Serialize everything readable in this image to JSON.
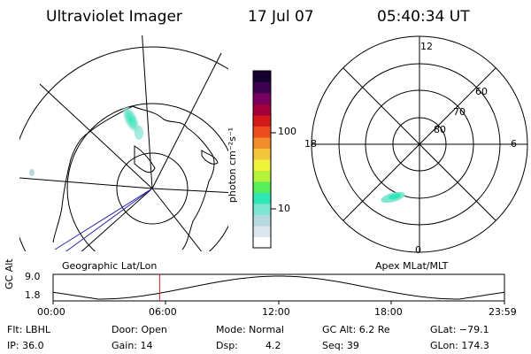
{
  "header": {
    "instrument": "Ultraviolet Imager",
    "date": "17 Jul 07",
    "time": "05:40:34 UT"
  },
  "colorbar": {
    "unit_label": "photon cm⁻²s⁻¹",
    "tick_100": "100",
    "tick_10": "10",
    "colors": [
      "#ffffff",
      "#dde6ee",
      "#b8d8e0",
      "#7fe6d2",
      "#2fe8b6",
      "#57f05a",
      "#b6f23a",
      "#f0f23c",
      "#f2c53c",
      "#f08d2a",
      "#ee4b1e",
      "#d21a1a",
      "#a3003a",
      "#7a0060",
      "#3e0050",
      "#160030"
    ]
  },
  "polar_plot": {
    "mlt_labels": {
      "top": "12",
      "left": "18",
      "right": "6",
      "bottom": "0"
    },
    "lat_labels": [
      "60",
      "70",
      "80"
    ]
  },
  "plot_labels": {
    "geo": "Geographic Lat/Lon",
    "apex": "Apex MLat/MLT"
  },
  "timeline": {
    "ylabel": "GC Alt",
    "ymax": "9.0",
    "ymin": "1.8",
    "xticks": [
      "00:00",
      "06:00",
      "12:00",
      "18:00",
      "23:59"
    ],
    "current_time_fraction": 0.236,
    "marker_color": "#d21a1a"
  },
  "info": {
    "flt": "Flt: LBHL",
    "door": "Door: Open",
    "mode": "Mode: Normal",
    "gc_alt": "GC Alt: 6.2 Re",
    "glat": "GLat: −79.1",
    "ip": "IP: 36.0",
    "gain": "Gain: 14",
    "dsp_label": "Dsp:",
    "dsp_value": "4.2",
    "seq": "Seq: 39",
    "glon": "GLon: 174.3"
  }
}
